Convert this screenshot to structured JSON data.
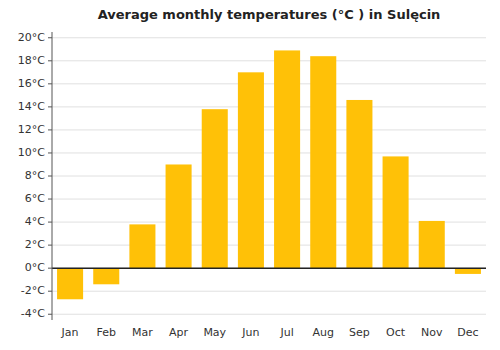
{
  "chart_data": {
    "type": "bar",
    "title": "Average monthly temperatures (°C ) in Sulęcin",
    "categories": [
      "Jan",
      "Feb",
      "Mar",
      "Apr",
      "May",
      "Jun",
      "Jul",
      "Aug",
      "Sep",
      "Oct",
      "Nov",
      "Dec"
    ],
    "values": [
      -2.7,
      -1.4,
      3.8,
      9.0,
      13.8,
      17.0,
      18.9,
      18.4,
      14.6,
      9.7,
      4.1,
      -0.5
    ],
    "color": "#FFC107",
    "ylim": [
      -4.5,
      20.5
    ],
    "yticks": [
      {
        "value": -4,
        "label": "-4°C"
      },
      {
        "value": -2,
        "label": "-2°C"
      },
      {
        "value": 0,
        "label": "0°C"
      },
      {
        "value": 2,
        "label": "2°C"
      },
      {
        "value": 4,
        "label": "4°C"
      },
      {
        "value": 6,
        "label": "6°C"
      },
      {
        "value": 8,
        "label": "8°C"
      },
      {
        "value": 10,
        "label": "10°C"
      },
      {
        "value": 12,
        "label": "12°C"
      },
      {
        "value": 14,
        "label": "14°C"
      },
      {
        "value": 16,
        "label": "16°C"
      },
      {
        "value": 18,
        "label": "18°C"
      },
      {
        "value": 20,
        "label": "20°C"
      }
    ],
    "grid": true
  }
}
